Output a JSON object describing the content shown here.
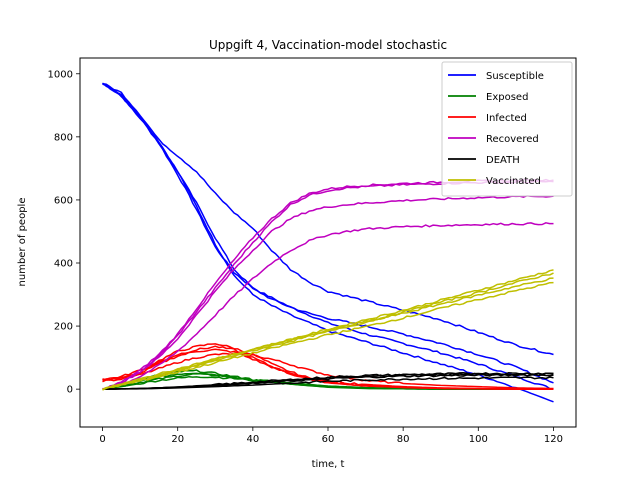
{
  "chart_data": {
    "type": "line",
    "title": "Uppgift 4, Vaccination-model stochastic",
    "xlabel": "time, t",
    "ylabel": "number of people",
    "xlim": [
      -6,
      126
    ],
    "ylim": [
      -120,
      1050
    ],
    "xticks": [
      0,
      20,
      40,
      60,
      80,
      100,
      120
    ],
    "yticks": [
      0,
      200,
      400,
      600,
      800,
      1000
    ],
    "grid": false,
    "legend_position": "top-right",
    "runs": 4,
    "series": [
      {
        "name": "Susceptible",
        "color": "#0000ff",
        "runs": [
          {
            "x": [
              0,
              5,
              10,
              15,
              20,
              25,
              30,
              35,
              40,
              45,
              50,
              55,
              60,
              70,
              80,
              90,
              100,
              110,
              120
            ],
            "y": [
              970,
              930,
              860,
              780,
              680,
              570,
              450,
              370,
              320,
              290,
              260,
              235,
              210,
              175,
              145,
              115,
              80,
              40,
              0
            ]
          },
          {
            "x": [
              0,
              5,
              10,
              15,
              20,
              25,
              30,
              35,
              40,
              45,
              50,
              55,
              60,
              70,
              80,
              90,
              100,
              110,
              120
            ],
            "y": [
              970,
              935,
              865,
              785,
              690,
              580,
              460,
              360,
              300,
              265,
              235,
              210,
              185,
              150,
              115,
              80,
              45,
              5,
              -40
            ]
          },
          {
            "x": [
              0,
              5,
              10,
              15,
              20,
              25,
              30,
              35,
              40,
              45,
              50,
              55,
              60,
              70,
              80,
              90,
              100,
              110,
              120
            ],
            "y": [
              970,
              930,
              860,
              780,
              690,
              590,
              480,
              380,
              320,
              285,
              260,
              240,
              225,
              200,
              175,
              145,
              110,
              70,
              20
            ]
          },
          {
            "x": [
              0,
              5,
              10,
              15,
              20,
              25,
              30,
              35,
              40,
              45,
              50,
              55,
              60,
              70,
              80,
              90,
              100,
              110,
              120
            ],
            "y": [
              970,
              940,
              870,
              790,
              740,
              690,
              620,
              560,
              510,
              440,
              380,
              340,
              310,
              280,
              250,
              220,
              180,
              140,
              110
            ]
          }
        ]
      },
      {
        "name": "Exposed",
        "color": "#008000",
        "runs": [
          {
            "x": [
              0,
              5,
              10,
              15,
              20,
              25,
              30,
              35,
              40,
              50,
              60,
              70,
              80,
              90,
              100,
              110,
              120
            ],
            "y": [
              0,
              10,
              22,
              32,
              42,
              48,
              44,
              38,
              30,
              18,
              8,
              4,
              2,
              1,
              0,
              0,
              0
            ]
          },
          {
            "x": [
              0,
              5,
              10,
              15,
              20,
              25,
              30,
              35,
              40,
              50,
              60,
              70,
              80,
              90,
              100,
              110,
              120
            ],
            "y": [
              0,
              12,
              25,
              38,
              48,
              52,
              46,
              38,
              28,
              16,
              7,
              3,
              1,
              0,
              0,
              0,
              0
            ]
          },
          {
            "x": [
              0,
              5,
              10,
              15,
              20,
              25,
              30,
              35,
              40,
              50,
              60,
              70,
              80,
              90,
              100,
              110,
              120
            ],
            "y": [
              0,
              14,
              30,
              45,
              55,
              58,
              50,
              40,
              30,
              16,
              6,
              2,
              1,
              0,
              0,
              0,
              0
            ]
          },
          {
            "x": [
              0,
              5,
              10,
              15,
              20,
              25,
              30,
              35,
              40,
              50,
              60,
              70,
              80,
              90,
              100,
              110,
              120
            ],
            "y": [
              0,
              8,
              18,
              28,
              35,
              40,
              38,
              34,
              28,
              20,
              10,
              5,
              2,
              1,
              0,
              0,
              0
            ]
          }
        ]
      },
      {
        "name": "Infected",
        "color": "#ff0000",
        "runs": [
          {
            "x": [
              0,
              5,
              10,
              15,
              20,
              25,
              30,
              35,
              40,
              45,
              50,
              55,
              60,
              70,
              80,
              90,
              100,
              110,
              120
            ],
            "y": [
              30,
              35,
              50,
              80,
              105,
              120,
              125,
              118,
              95,
              70,
              50,
              35,
              25,
              15,
              8,
              4,
              2,
              1,
              0
            ]
          },
          {
            "x": [
              0,
              5,
              10,
              15,
              20,
              25,
              30,
              35,
              40,
              45,
              50,
              55,
              60,
              70,
              80,
              90,
              100,
              110,
              120
            ],
            "y": [
              25,
              32,
              55,
              85,
              110,
              125,
              135,
              125,
              100,
              72,
              48,
              32,
              20,
              10,
              5,
              2,
              1,
              0,
              0
            ]
          },
          {
            "x": [
              0,
              5,
              10,
              15,
              20,
              25,
              30,
              35,
              40,
              45,
              50,
              55,
              60,
              70,
              80,
              90,
              100,
              110,
              120
            ],
            "y": [
              30,
              40,
              60,
              90,
              120,
              135,
              145,
              130,
              110,
              80,
              55,
              35,
              22,
              12,
              6,
              3,
              1,
              0,
              0
            ]
          },
          {
            "x": [
              0,
              5,
              10,
              15,
              20,
              25,
              30,
              35,
              40,
              45,
              50,
              55,
              60,
              70,
              80,
              90,
              100,
              110,
              120
            ],
            "y": [
              30,
              35,
              45,
              65,
              85,
              100,
              110,
              112,
              108,
              95,
              78,
              60,
              45,
              28,
              18,
              12,
              8,
              4,
              2
            ]
          }
        ]
      },
      {
        "name": "Recovered",
        "color": "#bf00bf",
        "runs": [
          {
            "x": [
              0,
              5,
              10,
              15,
              20,
              25,
              30,
              35,
              40,
              45,
              50,
              55,
              60,
              65,
              70,
              80,
              90,
              100,
              110,
              120
            ],
            "y": [
              0,
              20,
              55,
              105,
              170,
              245,
              320,
              395,
              465,
              530,
              585,
              615,
              630,
              638,
              642,
              648,
              652,
              655,
              656,
              658
            ]
          },
          {
            "x": [
              0,
              5,
              10,
              15,
              20,
              25,
              30,
              35,
              40,
              45,
              50,
              55,
              60,
              65,
              70,
              80,
              90,
              100,
              110,
              120
            ],
            "y": [
              0,
              22,
              60,
              110,
              175,
              255,
              335,
              410,
              480,
              540,
              590,
              620,
              635,
              642,
              646,
              652,
              656,
              660,
              662,
              663
            ]
          },
          {
            "x": [
              0,
              5,
              10,
              15,
              20,
              25,
              30,
              35,
              40,
              45,
              50,
              55,
              60,
              65,
              70,
              80,
              90,
              100,
              110,
              120
            ],
            "y": [
              0,
              20,
              55,
              100,
              160,
              235,
              310,
              380,
              440,
              500,
              540,
              565,
              578,
              585,
              590,
              598,
              603,
              607,
              610,
              612
            ]
          },
          {
            "x": [
              0,
              5,
              10,
              15,
              20,
              25,
              30,
              35,
              40,
              45,
              50,
              55,
              60,
              65,
              70,
              80,
              90,
              100,
              110,
              120
            ],
            "y": [
              0,
              15,
              40,
              75,
              120,
              175,
              235,
              295,
              350,
              400,
              440,
              470,
              490,
              500,
              508,
              515,
              519,
              522,
              524,
              525
            ]
          }
        ]
      },
      {
        "name": "DEATH",
        "color": "#000000",
        "runs": [
          {
            "x": [
              0,
              10,
              20,
              30,
              40,
              50,
              60,
              70,
              80,
              90,
              100,
              110,
              120
            ],
            "y": [
              0,
              2,
              6,
              12,
              18,
              26,
              33,
              38,
              41,
              43,
              44,
              45,
              45
            ]
          },
          {
            "x": [
              0,
              10,
              20,
              30,
              40,
              50,
              60,
              70,
              80,
              90,
              100,
              110,
              120
            ],
            "y": [
              0,
              2,
              6,
              12,
              20,
              28,
              36,
              41,
              44,
              46,
              47,
              48,
              48
            ]
          },
          {
            "x": [
              0,
              10,
              20,
              30,
              40,
              50,
              60,
              70,
              80,
              90,
              100,
              110,
              120
            ],
            "y": [
              0,
              2,
              7,
              14,
              22,
              30,
              38,
              43,
              46,
              48,
              50,
              50,
              50
            ]
          },
          {
            "x": [
              0,
              10,
              20,
              30,
              40,
              50,
              60,
              70,
              80,
              90,
              100,
              110,
              120
            ],
            "y": [
              0,
              1,
              4,
              8,
              13,
              19,
              25,
              29,
              32,
              34,
              35,
              36,
              36
            ]
          }
        ]
      },
      {
        "name": "Vaccinated",
        "color": "#bfbf00",
        "runs": [
          {
            "x": [
              0,
              10,
              20,
              30,
              40,
              50,
              60,
              70,
              80,
              90,
              100,
              110,
              120
            ],
            "y": [
              0,
              30,
              62,
              94,
              126,
              158,
              190,
              220,
              250,
              282,
              314,
              346,
              378
            ]
          },
          {
            "x": [
              0,
              10,
              20,
              30,
              40,
              50,
              60,
              70,
              80,
              90,
              100,
              110,
              120
            ],
            "y": [
              0,
              28,
              58,
              90,
              122,
              152,
              182,
              212,
              244,
              276,
              306,
              338,
              368
            ]
          },
          {
            "x": [
              0,
              10,
              20,
              30,
              40,
              50,
              60,
              70,
              80,
              90,
              100,
              110,
              120
            ],
            "y": [
              0,
              32,
              64,
              96,
              126,
              156,
              186,
              214,
              240,
              270,
              298,
              326,
              352
            ]
          },
          {
            "x": [
              0,
              10,
              20,
              30,
              40,
              50,
              60,
              70,
              80,
              90,
              100,
              110,
              120
            ],
            "y": [
              0,
              26,
              54,
              84,
              114,
              144,
              172,
              198,
              226,
              256,
              284,
              312,
              338
            ]
          }
        ]
      }
    ]
  }
}
